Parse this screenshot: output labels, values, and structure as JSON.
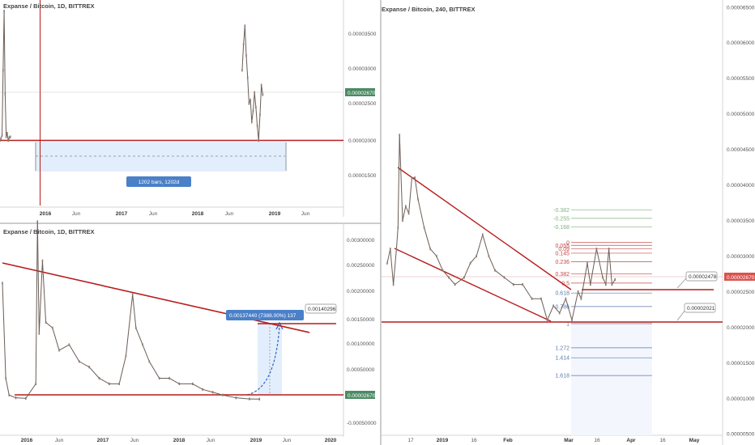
{
  "chart_data": [
    {
      "type": "candlestick",
      "title": "Expanse / Bitcoin, 1D, BITTREX",
      "x_ticks": [
        "2016",
        "Jun",
        "2017",
        "Jun",
        "2018",
        "Jun",
        "2019",
        "Jun"
      ],
      "y_ticks": [
        "0.00003500",
        "0.00003000",
        "0.00002500",
        "0.00002000",
        "0.00001500"
      ],
      "ylim": [
        1.15e-05,
        3.95e-05
      ],
      "last_price": "0.00002670",
      "support_level": 2e-05,
      "range_label": "1202 bars, 1202d",
      "segments": [
        {
          "x_start": 0.0,
          "x_end": 0.03,
          "points": [
            2.05e-05,
            2.08e-05,
            2.12e-05,
            3e-05,
            3.8e-05,
            2.68e-05,
            2.1e-05,
            2.15e-05,
            2.05e-05,
            2.09e-05,
            2.1e-05
          ]
        },
        {
          "x_start": 0.705,
          "x_end": 0.765,
          "points": [
            3e-05,
            3.35e-05,
            3.6e-05,
            3.2e-05,
            2.9e-05,
            2.55e-05,
            2.6e-05,
            2.3e-05,
            2.45e-05,
            2.7e-05,
            2.5e-05,
            2.25e-05,
            2.05e-05,
            2.4e-05,
            2.8e-05,
            2.67e-05
          ]
        }
      ]
    },
    {
      "type": "candlestick",
      "title": "Expanse / Bitcoin, 1D, BITTREX",
      "x_ticks": [
        "2016",
        "Jun",
        "2017",
        "Jun",
        "2018",
        "Jun",
        "2019",
        "Jun",
        "2020"
      ],
      "y_ticks": [
        "0.00300000",
        "0.00250000",
        "0.00200000",
        "0.00150000",
        "0.00100000",
        "0.00050000",
        "-0.00050000"
      ],
      "ylim": [
        -0.00062,
        0.00317
      ],
      "last_price": "0.00002670",
      "target_price": "0.00140296",
      "measure_label": "0.00137440 (7388.00%) 137",
      "series": [
        {
          "x": 0.0,
          "y": 0.0021
        },
        {
          "x": 0.01,
          "y": 0.0004
        },
        {
          "x": 0.02,
          "y": 0.0001
        },
        {
          "x": 0.04,
          "y": 5e-05
        },
        {
          "x": 0.07,
          "y": 4e-05
        },
        {
          "x": 0.1,
          "y": 0.0003
        },
        {
          "x": 0.105,
          "y": 0.0032
        },
        {
          "x": 0.11,
          "y": 0.0012
        },
        {
          "x": 0.12,
          "y": 0.0025
        },
        {
          "x": 0.13,
          "y": 0.0014
        },
        {
          "x": 0.15,
          "y": 0.0013
        },
        {
          "x": 0.17,
          "y": 0.0009
        },
        {
          "x": 0.2,
          "y": 0.001
        },
        {
          "x": 0.23,
          "y": 0.0007
        },
        {
          "x": 0.26,
          "y": 0.0006
        },
        {
          "x": 0.29,
          "y": 0.0004
        },
        {
          "x": 0.32,
          "y": 0.0003
        },
        {
          "x": 0.35,
          "y": 0.0003
        },
        {
          "x": 0.37,
          "y": 0.0008
        },
        {
          "x": 0.39,
          "y": 0.0019
        },
        {
          "x": 0.4,
          "y": 0.0013
        },
        {
          "x": 0.42,
          "y": 0.001
        },
        {
          "x": 0.44,
          "y": 0.0007
        },
        {
          "x": 0.47,
          "y": 0.0004
        },
        {
          "x": 0.5,
          "y": 0.0004
        },
        {
          "x": 0.53,
          "y": 0.0003
        },
        {
          "x": 0.57,
          "y": 0.0003
        },
        {
          "x": 0.6,
          "y": 0.0002
        },
        {
          "x": 0.63,
          "y": 0.00015
        },
        {
          "x": 0.66,
          "y": 0.0001
        },
        {
          "x": 0.7,
          "y": 5e-05
        },
        {
          "x": 0.74,
          "y": 3e-05
        },
        {
          "x": 0.77,
          "y": 2.67e-05
        }
      ]
    },
    {
      "type": "candlestick",
      "title": "Expanse / Bitcoin, 240, BITTREX",
      "x_ticks": [
        "17",
        "2019",
        "16",
        "Feb",
        "Mar",
        "16",
        "Apr",
        "16",
        "May"
      ],
      "y_ticks": [
        "0.00006500",
        "0.00006000",
        "0.00005500",
        "0.00005000",
        "0.00004500",
        "0.00004000",
        "0.00003500",
        "0.00003000",
        "0.00002500",
        "0.00002000",
        "0.00001500",
        "0.00001000",
        "0.00000500"
      ],
      "ylim": [
        4.8e-06,
        6.6e-05
      ],
      "last_price": "0.00002670",
      "horizontal_levels": [
        "0.00002478",
        "0.00002021"
      ],
      "fib_levels": [
        {
          "label": "-0.382",
          "value": 3.65e-05
        },
        {
          "label": "-0.255",
          "value": 3.53e-05
        },
        {
          "label": "-0.168",
          "value": 3.41e-05
        },
        {
          "label": "0",
          "value": 3.19e-05
        },
        {
          "label": "0.055",
          "value": 3.15e-05
        },
        {
          "label": "0.09",
          "value": 3.1e-05
        },
        {
          "label": "0.145",
          "value": 3.04e-05
        },
        {
          "label": "0.236",
          "value": 2.92e-05
        },
        {
          "label": "0.382",
          "value": 2.75e-05
        },
        {
          "label": "0.5",
          "value": 2.62e-05
        },
        {
          "label": "0.618",
          "value": 2.48e-05
        },
        {
          "label": "0.786",
          "value": 2.29e-05
        },
        {
          "label": "1",
          "value": 2.05e-05
        },
        {
          "label": "1.272",
          "value": 1.71e-05
        },
        {
          "label": "1.414",
          "value": 1.57e-05
        },
        {
          "label": "1.618",
          "value": 1.32e-05
        }
      ],
      "series": [
        {
          "x": 0.0,
          "y": 2.9e-05
        },
        {
          "x": 0.01,
          "y": 3.1e-05
        },
        {
          "x": 0.02,
          "y": 2.6e-05
        },
        {
          "x": 0.03,
          "y": 3.1e-05
        },
        {
          "x": 0.035,
          "y": 3.4e-05
        },
        {
          "x": 0.04,
          "y": 4.7e-05
        },
        {
          "x": 0.05,
          "y": 3.5e-05
        },
        {
          "x": 0.06,
          "y": 3.7e-05
        },
        {
          "x": 0.07,
          "y": 3.6e-05
        },
        {
          "x": 0.08,
          "y": 4.1e-05
        },
        {
          "x": 0.09,
          "y": 4.1e-05
        },
        {
          "x": 0.1,
          "y": 3.8e-05
        },
        {
          "x": 0.12,
          "y": 3.4e-05
        },
        {
          "x": 0.14,
          "y": 3.1e-05
        },
        {
          "x": 0.16,
          "y": 3e-05
        },
        {
          "x": 0.18,
          "y": 2.8e-05
        },
        {
          "x": 0.2,
          "y": 2.7e-05
        },
        {
          "x": 0.22,
          "y": 2.6e-05
        },
        {
          "x": 0.25,
          "y": 2.7e-05
        },
        {
          "x": 0.27,
          "y": 2.9e-05
        },
        {
          "x": 0.29,
          "y": 3e-05
        },
        {
          "x": 0.31,
          "y": 3.3e-05
        },
        {
          "x": 0.33,
          "y": 3e-05
        },
        {
          "x": 0.35,
          "y": 2.8e-05
        },
        {
          "x": 0.38,
          "y": 2.7e-05
        },
        {
          "x": 0.41,
          "y": 2.6e-05
        },
        {
          "x": 0.44,
          "y": 2.6e-05
        },
        {
          "x": 0.47,
          "y": 2.4e-05
        },
        {
          "x": 0.5,
          "y": 2.4e-05
        },
        {
          "x": 0.52,
          "y": 2.1e-05
        },
        {
          "x": 0.54,
          "y": 2.3e-05
        },
        {
          "x": 0.56,
          "y": 2.2e-05
        },
        {
          "x": 0.58,
          "y": 2.4e-05
        },
        {
          "x": 0.6,
          "y": 2.1e-05
        },
        {
          "x": 0.62,
          "y": 2.5e-05
        },
        {
          "x": 0.63,
          "y": 2.4e-05
        },
        {
          "x": 0.65,
          "y": 2.9e-05
        },
        {
          "x": 0.66,
          "y": 2.6e-05
        },
        {
          "x": 0.68,
          "y": 3.1e-05
        },
        {
          "x": 0.7,
          "y": 2.7e-05
        },
        {
          "x": 0.71,
          "y": 2.6e-05
        },
        {
          "x": 0.72,
          "y": 3.1e-05
        },
        {
          "x": 0.73,
          "y": 2.6e-05
        },
        {
          "x": 0.74,
          "y": 2.67e-05
        }
      ]
    }
  ]
}
